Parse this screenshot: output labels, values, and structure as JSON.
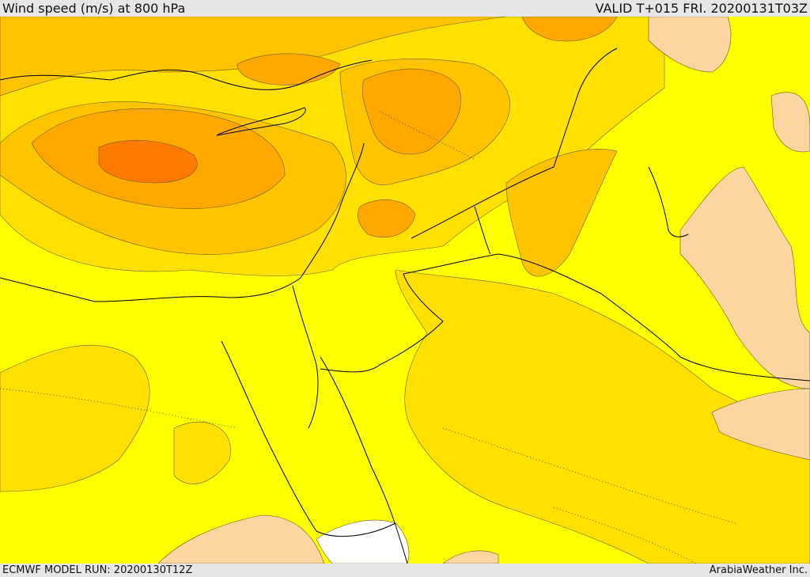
{
  "header": {
    "title": "Wind speed (m/s) at 800 hPa",
    "valid": "VALID T+015 FRI. 20200131T03Z"
  },
  "footer": {
    "run": "ECMWF MODEL RUN: 20200130T12Z",
    "credit": "ArabiaWeather Inc."
  },
  "colors": {
    "bin_low": "#fcd5a0",
    "bin_1": "#ffff00",
    "bin_2": "#ffe000",
    "bin_3": "#ffc400",
    "bin_4": "#ffa800",
    "bin_5": "#ff8c00",
    "bin_6": "#ff7a00",
    "no_data": "#ffffff",
    "coastline": "#000000",
    "contour": "#6b5a1a"
  }
}
